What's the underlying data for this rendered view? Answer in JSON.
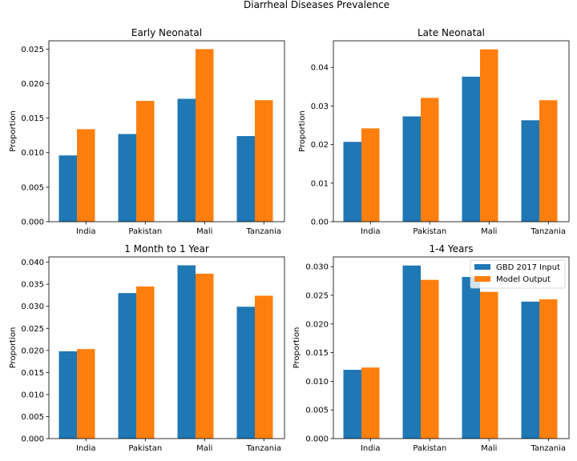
{
  "figure": {
    "suptitle": "Diarrheal Diseases Prevalence"
  },
  "chart_data": [
    {
      "type": "bar",
      "title": "Early Neonatal",
      "ylabel": "Proportion",
      "categories": [
        "India",
        "Pakistan",
        "Mali",
        "Tanzania"
      ],
      "ylim": [
        0,
        0.0262
      ],
      "yticks": [
        "0.000",
        "0.005",
        "0.010",
        "0.015",
        "0.020",
        "0.025"
      ],
      "ytick_values": [
        0,
        0.005,
        0.01,
        0.015,
        0.02,
        0.025
      ],
      "series": [
        {
          "name": "GBD 2017 Input",
          "color": "#1f77b4",
          "values": [
            0.0096,
            0.0127,
            0.0178,
            0.0124
          ]
        },
        {
          "name": "Model Output",
          "color": "#ff7f0e",
          "values": [
            0.0134,
            0.0175,
            0.025,
            0.0176
          ]
        }
      ]
    },
    {
      "type": "bar",
      "title": "Late Neonatal",
      "ylabel": "Proportion",
      "categories": [
        "India",
        "Pakistan",
        "Mali",
        "Tanzania"
      ],
      "ylim": [
        0,
        0.0469
      ],
      "yticks": [
        "0.00",
        "0.01",
        "0.02",
        "0.03",
        "0.04"
      ],
      "ytick_values": [
        0,
        0.01,
        0.02,
        0.03,
        0.04
      ],
      "series": [
        {
          "name": "GBD 2017 Input",
          "color": "#1f77b4",
          "values": [
            0.0207,
            0.0273,
            0.0376,
            0.0263
          ]
        },
        {
          "name": "Model Output",
          "color": "#ff7f0e",
          "values": [
            0.0242,
            0.0321,
            0.0447,
            0.0315
          ]
        }
      ]
    },
    {
      "type": "bar",
      "title": "1 Month to 1 Year",
      "ylabel": "Proportion",
      "categories": [
        "India",
        "Pakistan",
        "Mali",
        "Tanzania"
      ],
      "ylim": [
        0,
        0.0412
      ],
      "yticks": [
        "0.000",
        "0.005",
        "0.010",
        "0.015",
        "0.020",
        "0.025",
        "0.030",
        "0.035",
        "0.040"
      ],
      "ytick_values": [
        0,
        0.005,
        0.01,
        0.015,
        0.02,
        0.025,
        0.03,
        0.035,
        0.04
      ],
      "series": [
        {
          "name": "GBD 2017 Input",
          "color": "#1f77b4",
          "values": [
            0.0198,
            0.033,
            0.0393,
            0.0299
          ]
        },
        {
          "name": "Model Output",
          "color": "#ff7f0e",
          "values": [
            0.0203,
            0.0345,
            0.0374,
            0.0324
          ]
        }
      ]
    },
    {
      "type": "bar",
      "title": "1-4 Years",
      "ylabel": "Proportion",
      "categories": [
        "India",
        "Pakistan",
        "Mali",
        "Tanzania"
      ],
      "ylim": [
        0,
        0.0317
      ],
      "yticks": [
        "0.000",
        "0.005",
        "0.010",
        "0.015",
        "0.020",
        "0.025",
        "0.030"
      ],
      "ytick_values": [
        0,
        0.005,
        0.01,
        0.015,
        0.02,
        0.025,
        0.03
      ],
      "legend": {
        "location": "upper right",
        "entries": [
          "GBD 2017 Input",
          "Model Output"
        ]
      },
      "series": [
        {
          "name": "GBD 2017 Input",
          "color": "#1f77b4",
          "values": [
            0.012,
            0.0302,
            0.0282,
            0.0239
          ]
        },
        {
          "name": "Model Output",
          "color": "#ff7f0e",
          "values": [
            0.0124,
            0.0277,
            0.0256,
            0.0243
          ]
        }
      ]
    }
  ]
}
